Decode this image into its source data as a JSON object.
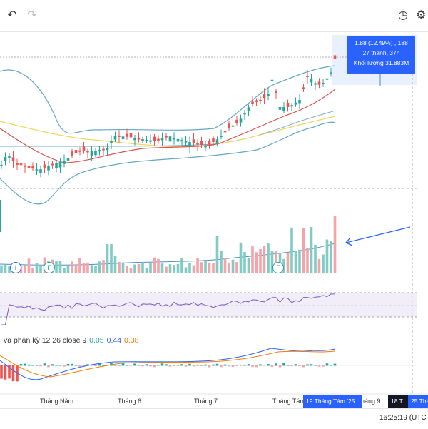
{
  "toolbar": {
    "undo_icon": "undo-icon",
    "redo_icon": "redo-icon",
    "timer_icon": "timer-icon",
    "gear_icon": "gear-icon"
  },
  "tooltip": {
    "line1": "1.88 (12.49%) , 188",
    "line2": "27 thanh, 37n",
    "line3": "Khối lượng 31.883M"
  },
  "event_markers": [
    "I",
    "F",
    "F"
  ],
  "macd": {
    "label": "và phân kỳ  12 26 close 9",
    "hist": "0.05",
    "macd": "0.44",
    "signal": "0.38"
  },
  "xaxis": {
    "labels": [
      "Tháng Năm",
      "Tháng 6",
      "Tháng 7",
      "Tháng Tám",
      "háng 9"
    ],
    "highlight_date": "19 Tháng Tám '25",
    "marker_dark": "18 T",
    "marker_blue": "25 Thá"
  },
  "clock": "16:25:19 (UTC",
  "colors": {
    "up": "#26a69a",
    "down": "#ef5350",
    "accent": "#2962ff",
    "bb": "#64a7c6",
    "ma_red": "#d9534f",
    "ma_yellow": "#f0d75c",
    "rsi_line": "#7e57c2"
  }
}
